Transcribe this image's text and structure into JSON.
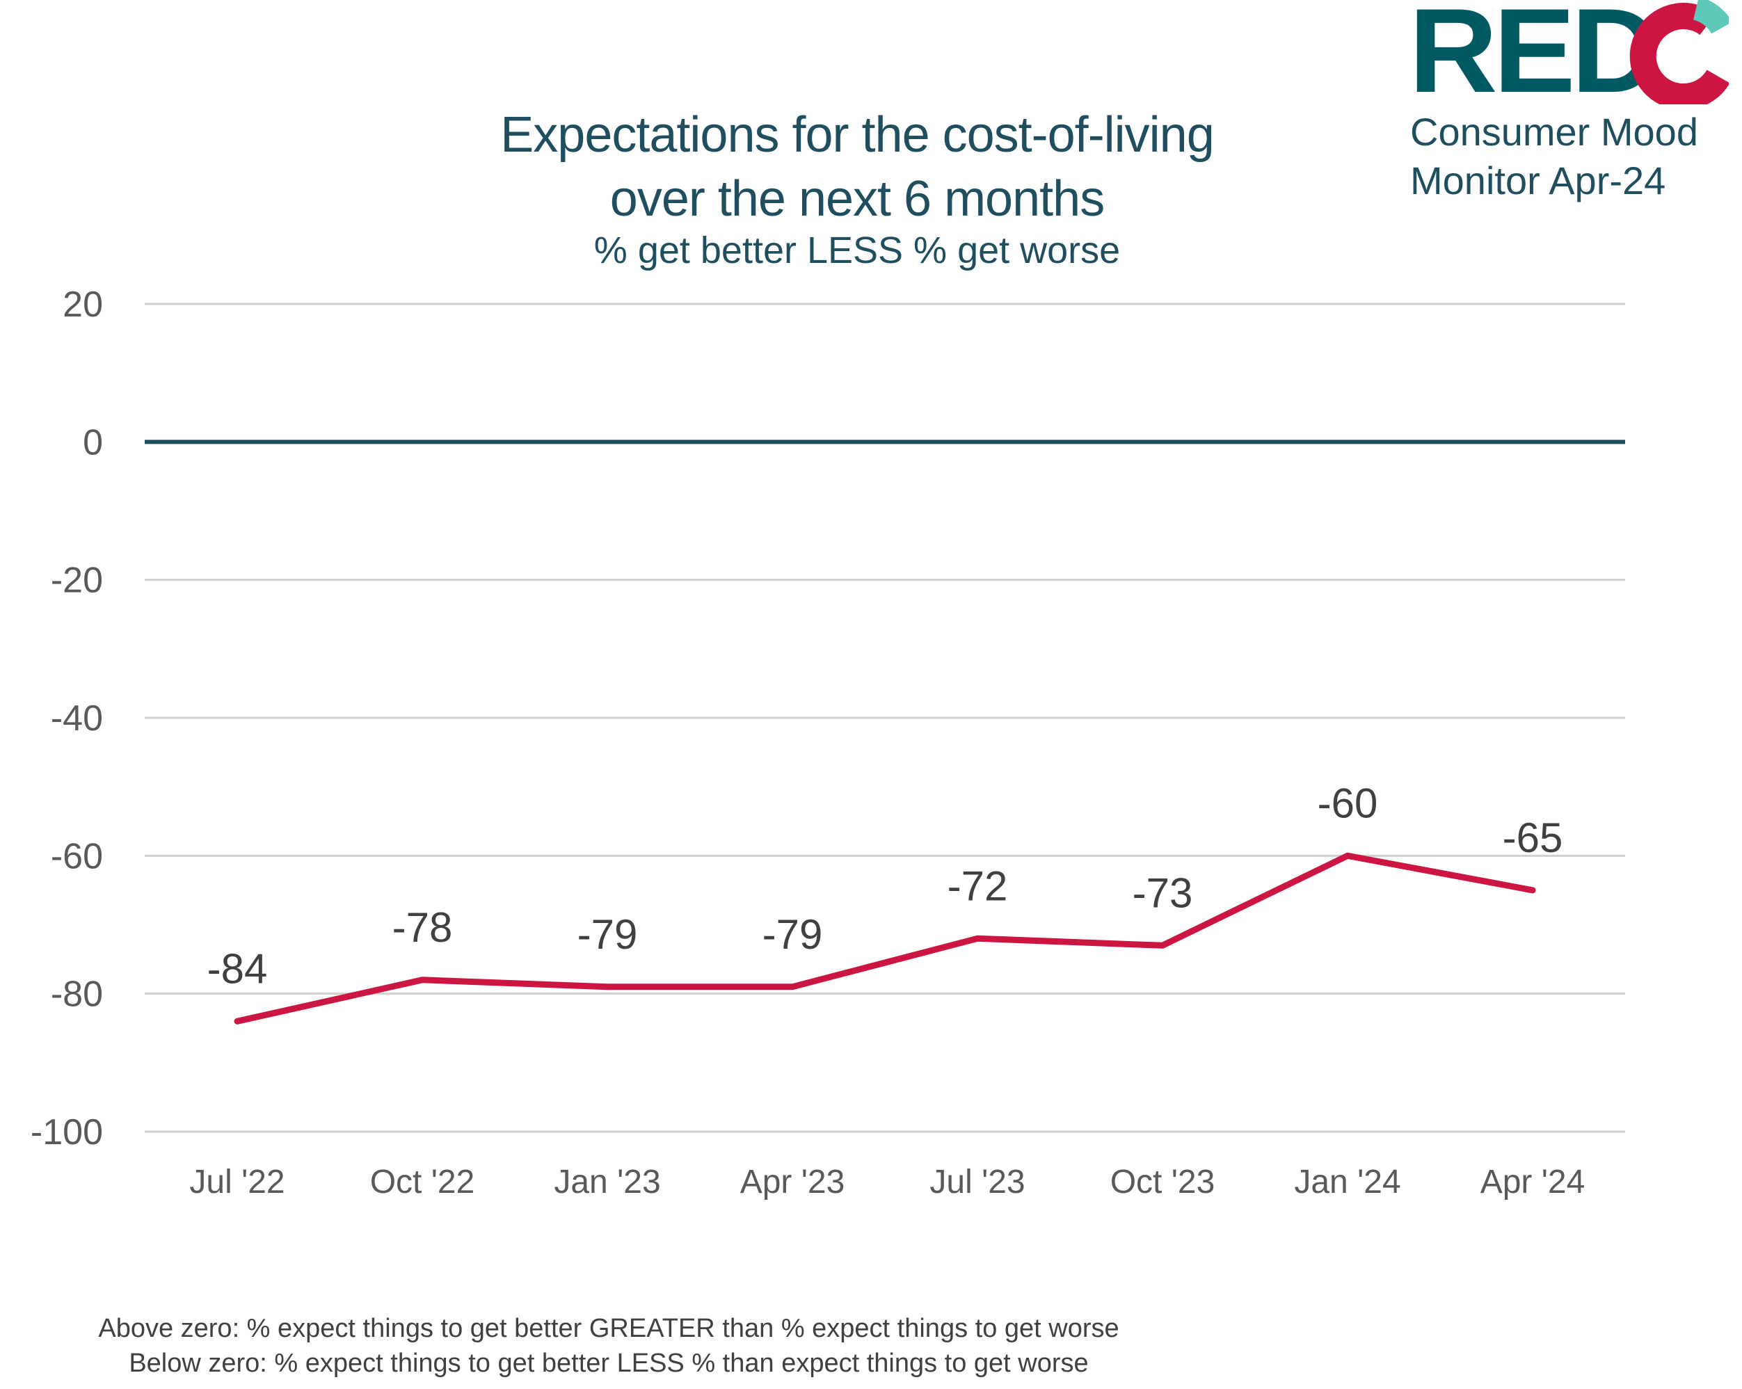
{
  "colors": {
    "title": "#1f4e5f",
    "series": "#cc1541",
    "zero_line": "#1f4e5f",
    "grid": "#d0d0d0",
    "tick_text": "#595959",
    "data_label": "#404040",
    "logo_teal": "#005a64",
    "logo_red": "#cc1541",
    "logo_mint": "#5ec9b8"
  },
  "brand": {
    "logo_text": "REDC",
    "line1": "Consumer Mood",
    "line2": "Monitor Apr-24"
  },
  "chart_data": {
    "type": "line",
    "title_line1": "Expectations for the cost-of-living",
    "title_line2": "over the next 6 months",
    "subtitle": "% get better LESS % get worse",
    "categories": [
      "Jul '22",
      "Oct '22",
      "Jan '23",
      "Apr '23",
      "Jul '23",
      "Oct '23",
      "Jan '24",
      "Apr '24"
    ],
    "values": [
      -84,
      -78,
      -79,
      -79,
      -72,
      -73,
      -60,
      -65
    ],
    "data_labels": [
      "-84",
      "-78",
      "-79",
      "-79",
      "-72",
      "-73",
      "-60",
      "-65"
    ],
    "ylim": [
      -100,
      20
    ],
    "y_ticks": [
      20,
      0,
      -20,
      -40,
      -60,
      -80,
      -100
    ],
    "y_tick_labels": [
      "20",
      "0",
      "-20",
      "-40",
      "-60",
      "-80",
      "-100"
    ],
    "grid": true,
    "legend": "none"
  },
  "footnotes": {
    "line1": "Above zero: % expect things to get better GREATER than % expect things to get worse",
    "line2": "Below zero: % expect things to get better LESS % than expect things to get worse"
  }
}
